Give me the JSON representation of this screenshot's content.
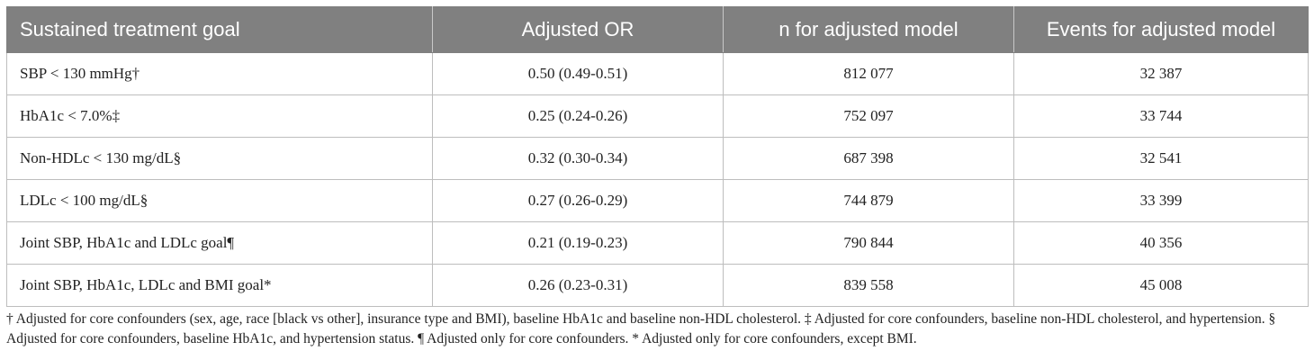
{
  "table": {
    "headers": [
      "Sustained treatment goal",
      "Adjusted OR",
      "n for adjusted model",
      "Events for adjusted model"
    ],
    "rows": [
      [
        "SBP < 130 mmHg†",
        "0.50 (0.49-0.51)",
        "812 077",
        "32 387"
      ],
      [
        "HbA1c < 7.0%‡",
        "0.25 (0.24-0.26)",
        "752 097",
        "33 744"
      ],
      [
        "Non-HDLc < 130 mg/dL§",
        "0.32 (0.30-0.34)",
        "687 398",
        "32 541"
      ],
      [
        "LDLc < 100 mg/dL§",
        "0.27 (0.26-0.29)",
        "744 879",
        "33 399"
      ],
      [
        "Joint SBP, HbA1c and LDLc goal¶",
        "0.21 (0.19-0.23)",
        "790 844",
        "40 356"
      ],
      [
        "Joint SBP, HbA1c, LDLc and BMI goal*",
        "0.26 (0.23-0.31)",
        "839 558",
        "45 008"
      ]
    ]
  },
  "footnote": "† Adjusted for core confounders (sex, age, race [black vs other], insurance type and BMI), baseline HbA1c and baseline non-HDL cholesterol. ‡ Adjusted for core confounders, baseline non-HDL cholesterol, and hypertension. § Adjusted for core confounders, baseline HbA1c, and hypertension status. ¶ Adjusted only for core confounders. * Adjusted only for core confounders, except BMI.",
  "colors": {
    "header_bg": "#808080",
    "header_text": "#ffffff",
    "border": "#bdbdbd"
  }
}
